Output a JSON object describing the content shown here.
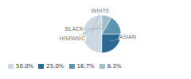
{
  "chart_data": {
    "type": "pie",
    "categories": [
      "WHITE",
      "ASIAN",
      "BLACK",
      "HISPANIC"
    ],
    "values": [
      50.0,
      25.0,
      16.7,
      8.3
    ],
    "value_labels": [
      "50.0%",
      "25.0%",
      "16.7%",
      "8.3%"
    ],
    "colors": [
      "#ccd9e3",
      "#2b6893",
      "#5b93b0",
      "#a0bfcc"
    ],
    "legend": "lower left"
  }
}
